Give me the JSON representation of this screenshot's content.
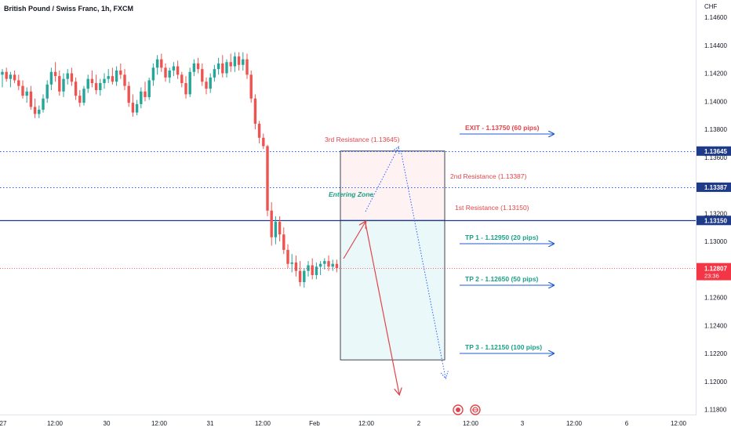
{
  "chart_title": "British Pound / Swiss Franc, 1h, FXCM",
  "currency": "CHF",
  "colors": {
    "up": "#26a69a",
    "down": "#ef5350",
    "resistance_line": "#1e3a8a",
    "dotted_line": "#2962ff",
    "price_label": "#f23645",
    "red_text": "#e0454b",
    "green_text": "#1aa086",
    "arrow_blue": "#1e5bd6",
    "arrow_red": "#e0454b"
  },
  "chart_data": {
    "type": "candlestick",
    "y_ticks": [
      "1.14600",
      "1.14400",
      "1.14200",
      "1.14000",
      "1.13800",
      "1.13600",
      "1.13400",
      "1.13200",
      "1.13000",
      "1.12800",
      "1.12600",
      "1.12400",
      "1.12200",
      "1.12000",
      "1.11800"
    ],
    "ylim": [
      1.1175,
      1.1467
    ],
    "x_ticks": [
      "27",
      "12:00",
      "30",
      "12:00",
      "31",
      "12:00",
      "Feb",
      "12:00",
      "2",
      "12:00",
      "3",
      "12:00",
      "6",
      "12:00"
    ],
    "price_labels": [
      {
        "value": 1.13645,
        "text": "1.13645"
      },
      {
        "value": 1.13387,
        "text": "1.13387"
      },
      {
        "value": 1.1315,
        "text": "1.13150"
      }
    ],
    "current_price": {
      "value": 1.12807,
      "text": "1.12807",
      "countdown": "23:36"
    },
    "levels": [
      {
        "value": 1.13645,
        "style": "dotted"
      },
      {
        "value": 1.13387,
        "style": "dotted"
      },
      {
        "value": 1.1315,
        "style": "solid"
      }
    ],
    "annotations": [
      {
        "text": "3rd Resistance (1.13645)",
        "color": "red"
      },
      {
        "text": "2nd Resistance (1.13387)",
        "color": "red"
      },
      {
        "text": "1st Resistance  (1.13150)",
        "color": "red"
      },
      {
        "text": "Entering Zone",
        "color": "green"
      },
      {
        "text": "EXIT - 1.13750 (60 pips)",
        "color": "red"
      },
      {
        "text": "TP 1 - 1.12950 (20 pips)",
        "color": "green"
      },
      {
        "text": "TP 2 - 1.12650 (50 pips)",
        "color": "green"
      },
      {
        "text": "TP 3 - 1.12150 (100 pips)",
        "color": "green"
      }
    ],
    "position": {
      "entry": 1.1315,
      "stop": 1.13645,
      "target": 1.12155
    },
    "candles": [
      [
        1.1419,
        1.1423,
        1.141,
        1.1421
      ],
      [
        1.1421,
        1.1424,
        1.1414,
        1.1416
      ],
      [
        1.1416,
        1.1421,
        1.141,
        1.1419
      ],
      [
        1.1419,
        1.1422,
        1.1413,
        1.1415
      ],
      [
        1.1415,
        1.1419,
        1.1408,
        1.1411
      ],
      [
        1.1411,
        1.1415,
        1.1402,
        1.1404
      ],
      [
        1.1404,
        1.141,
        1.1399,
        1.1407
      ],
      [
        1.1407,
        1.1411,
        1.1394,
        1.1396
      ],
      [
        1.1396,
        1.1402,
        1.1388,
        1.1391
      ],
      [
        1.1391,
        1.1397,
        1.1388,
        1.1394
      ],
      [
        1.1394,
        1.1405,
        1.1392,
        1.1402
      ],
      [
        1.1402,
        1.1415,
        1.1399,
        1.1412
      ],
      [
        1.1412,
        1.1424,
        1.1408,
        1.1421
      ],
      [
        1.1421,
        1.1428,
        1.1414,
        1.1418
      ],
      [
        1.1418,
        1.1422,
        1.1404,
        1.1407
      ],
      [
        1.1407,
        1.142,
        1.1403,
        1.1416
      ],
      [
        1.1416,
        1.1423,
        1.1412,
        1.142
      ],
      [
        1.142,
        1.1424,
        1.1411,
        1.1414
      ],
      [
        1.1414,
        1.1417,
        1.1401,
        1.1404
      ],
      [
        1.1404,
        1.1408,
        1.1396,
        1.1399
      ],
      [
        1.1399,
        1.1411,
        1.1397,
        1.1409
      ],
      [
        1.1409,
        1.1419,
        1.1406,
        1.1416
      ],
      [
        1.1416,
        1.1422,
        1.141,
        1.1413
      ],
      [
        1.1413,
        1.1419,
        1.1405,
        1.1408
      ],
      [
        1.1408,
        1.1416,
        1.1404,
        1.1413
      ],
      [
        1.1413,
        1.142,
        1.1409,
        1.1416
      ],
      [
        1.1416,
        1.1423,
        1.1413,
        1.1418
      ],
      [
        1.1418,
        1.1424,
        1.1412,
        1.1414
      ],
      [
        1.1414,
        1.1425,
        1.1411,
        1.1422
      ],
      [
        1.1422,
        1.1427,
        1.1416,
        1.1419
      ],
      [
        1.1419,
        1.1423,
        1.1408,
        1.1411
      ],
      [
        1.1411,
        1.1414,
        1.1396,
        1.1399
      ],
      [
        1.1399,
        1.1405,
        1.1389,
        1.1392
      ],
      [
        1.1392,
        1.1401,
        1.139,
        1.1398
      ],
      [
        1.1398,
        1.141,
        1.1395,
        1.1407
      ],
      [
        1.1407,
        1.1414,
        1.14,
        1.1403
      ],
      [
        1.1403,
        1.1417,
        1.1401,
        1.1415
      ],
      [
        1.1415,
        1.1427,
        1.1411,
        1.1424
      ],
      [
        1.1424,
        1.1433,
        1.1419,
        1.143
      ],
      [
        1.143,
        1.1434,
        1.1421,
        1.1424
      ],
      [
        1.1424,
        1.1427,
        1.1414,
        1.1417
      ],
      [
        1.1417,
        1.1424,
        1.1413,
        1.1422
      ],
      [
        1.1422,
        1.1428,
        1.1418,
        1.1425
      ],
      [
        1.1425,
        1.1429,
        1.1416,
        1.1419
      ],
      [
        1.1419,
        1.1421,
        1.141,
        1.1413
      ],
      [
        1.1413,
        1.1418,
        1.1402,
        1.1405
      ],
      [
        1.1405,
        1.1424,
        1.1403,
        1.1421
      ],
      [
        1.1421,
        1.143,
        1.1418,
        1.1427
      ],
      [
        1.1427,
        1.1431,
        1.142,
        1.1423
      ],
      [
        1.1423,
        1.1427,
        1.1411,
        1.1414
      ],
      [
        1.1414,
        1.1417,
        1.1405,
        1.1409
      ],
      [
        1.1409,
        1.142,
        1.1406,
        1.1417
      ],
      [
        1.1417,
        1.1426,
        1.1414,
        1.1423
      ],
      [
        1.1423,
        1.1431,
        1.1419,
        1.1427
      ],
      [
        1.1427,
        1.1433,
        1.1417,
        1.142
      ],
      [
        1.142,
        1.143,
        1.1417,
        1.1428
      ],
      [
        1.1428,
        1.1434,
        1.1421,
        1.1425
      ],
      [
        1.1425,
        1.1435,
        1.1421,
        1.1432
      ],
      [
        1.1432,
        1.1435,
        1.1422,
        1.1426
      ],
      [
        1.1426,
        1.1435,
        1.1422,
        1.143
      ],
      [
        1.143,
        1.1434,
        1.1416,
        1.1419
      ],
      [
        1.1419,
        1.1422,
        1.1399,
        1.1402
      ],
      [
        1.1402,
        1.1405,
        1.138,
        1.1384
      ],
      [
        1.1384,
        1.1386,
        1.137,
        1.1374
      ],
      [
        1.1374,
        1.1377,
        1.1366,
        1.1368
      ],
      [
        1.1368,
        1.1369,
        1.1318,
        1.1322
      ],
      [
        1.1322,
        1.1328,
        1.1297,
        1.1303
      ],
      [
        1.1303,
        1.1318,
        1.1298,
        1.1314
      ],
      [
        1.1314,
        1.1318,
        1.13,
        1.1305
      ],
      [
        1.1305,
        1.131,
        1.1291,
        1.1294
      ],
      [
        1.1294,
        1.1298,
        1.1281,
        1.1284
      ],
      [
        1.1284,
        1.1291,
        1.1278,
        1.1285
      ],
      [
        1.1285,
        1.129,
        1.1275,
        1.1279
      ],
      [
        1.1279,
        1.1286,
        1.1268,
        1.1271
      ],
      [
        1.1271,
        1.1281,
        1.1267,
        1.1279
      ],
      [
        1.1279,
        1.1286,
        1.1275,
        1.1283
      ],
      [
        1.1283,
        1.1288,
        1.1273,
        1.1276
      ],
      [
        1.1276,
        1.1285,
        1.1273,
        1.1282
      ],
      [
        1.1282,
        1.1286,
        1.1276,
        1.1284
      ],
      [
        1.1284,
        1.1288,
        1.128,
        1.1286
      ],
      [
        1.1286,
        1.129,
        1.1279,
        1.1282
      ],
      [
        1.1282,
        1.1287,
        1.1279,
        1.1284
      ],
      [
        1.1284,
        1.1287,
        1.1278,
        1.1281
      ]
    ]
  }
}
